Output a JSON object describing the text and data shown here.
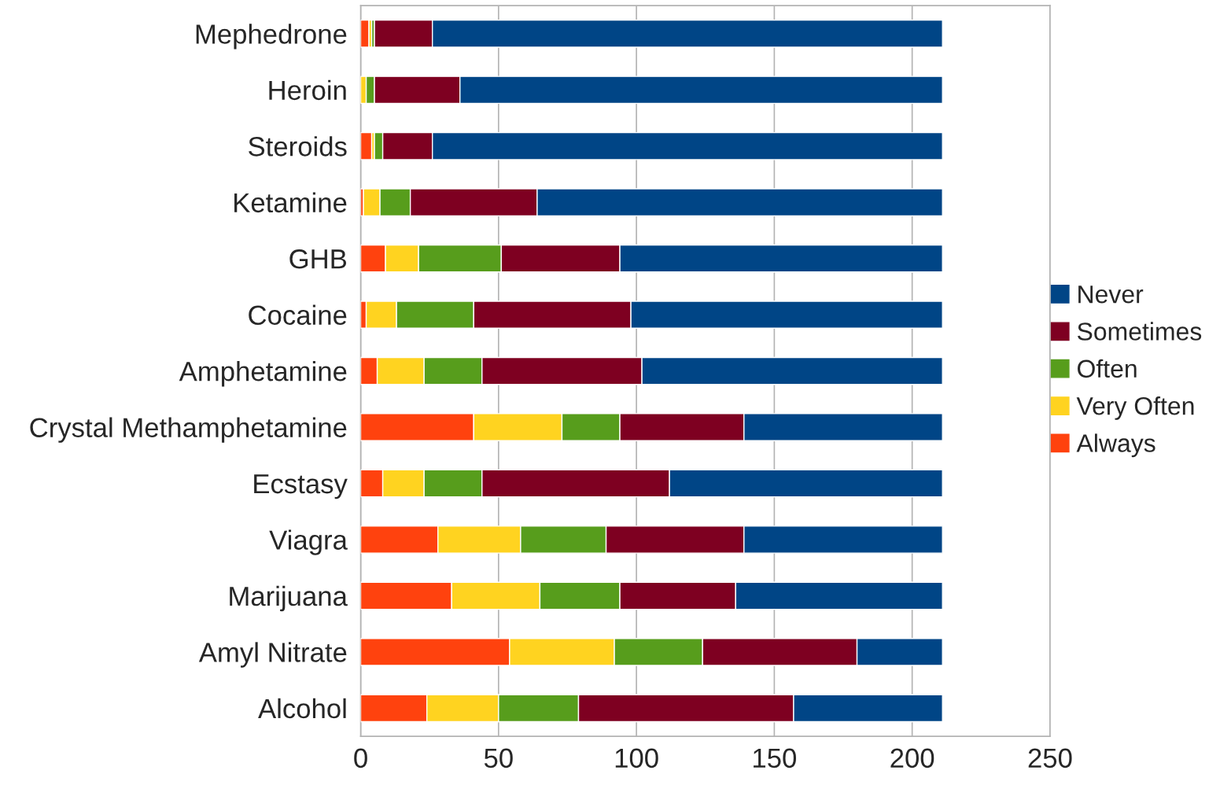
{
  "chart_data": {
    "type": "bar",
    "orientation": "horizontal",
    "stacked": true,
    "categories": [
      "Mephedrone",
      "Heroin",
      "Steroids",
      "Ketamine",
      "GHB",
      "Cocaine",
      "Amphetamine",
      "Crystal Methamphetamine",
      "Ecstasy",
      "Viagra",
      "Marijuana",
      "Amyl Nitrate",
      "Alcohol"
    ],
    "series": [
      {
        "name": "Always",
        "color": "#ff420e",
        "values": [
          3,
          0,
          4,
          1,
          9,
          2,
          6,
          41,
          8,
          28,
          33,
          54,
          24
        ]
      },
      {
        "name": "Very Often",
        "color": "#ffd320",
        "values": [
          1,
          2,
          1,
          6,
          12,
          11,
          17,
          32,
          15,
          30,
          32,
          38,
          26
        ]
      },
      {
        "name": "Often",
        "color": "#579d1c",
        "values": [
          1,
          3,
          3,
          11,
          30,
          28,
          21,
          21,
          21,
          31,
          29,
          32,
          29
        ]
      },
      {
        "name": "Sometimes",
        "color": "#7e0021",
        "values": [
          21,
          31,
          18,
          46,
          43,
          57,
          58,
          45,
          68,
          50,
          42,
          56,
          78
        ]
      },
      {
        "name": "Never",
        "color": "#004586",
        "values": [
          185,
          175,
          185,
          147,
          117,
          113,
          109,
          72,
          99,
          72,
          75,
          31,
          54
        ]
      }
    ],
    "xlim": [
      0,
      250
    ],
    "xticks": [
      0,
      50,
      100,
      150,
      200,
      250
    ],
    "grid": "x",
    "legend": "right"
  }
}
